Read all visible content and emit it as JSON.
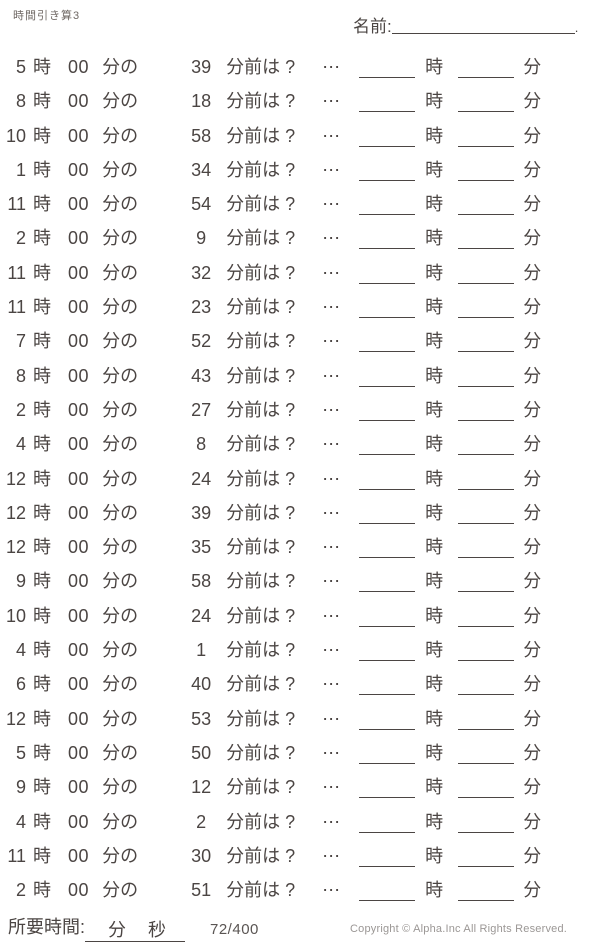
{
  "page": {
    "title": "時間引き算3",
    "name_label": "名前:",
    "name_end_dot": "."
  },
  "problem_labels": {
    "hour_unit": "時",
    "zero_minutes": "00",
    "minutes_of": "分の",
    "before_suffix": "分前は ?",
    "dots": "⋯",
    "answer_hour_unit": "時",
    "answer_minute_unit": "分"
  },
  "problems": [
    {
      "hour": "5",
      "minutes_before": "39"
    },
    {
      "hour": "8",
      "minutes_before": "18"
    },
    {
      "hour": "10",
      "minutes_before": "58"
    },
    {
      "hour": "1",
      "minutes_before": "34"
    },
    {
      "hour": "11",
      "minutes_before": "54"
    },
    {
      "hour": "2",
      "minutes_before": "9"
    },
    {
      "hour": "11",
      "minutes_before": "32"
    },
    {
      "hour": "11",
      "minutes_before": "23"
    },
    {
      "hour": "7",
      "minutes_before": "52"
    },
    {
      "hour": "8",
      "minutes_before": "43"
    },
    {
      "hour": "2",
      "minutes_before": "27"
    },
    {
      "hour": "4",
      "minutes_before": "8"
    },
    {
      "hour": "12",
      "minutes_before": "24"
    },
    {
      "hour": "12",
      "minutes_before": "39"
    },
    {
      "hour": "12",
      "minutes_before": "35"
    },
    {
      "hour": "9",
      "minutes_before": "58"
    },
    {
      "hour": "10",
      "minutes_before": "24"
    },
    {
      "hour": "4",
      "minutes_before": "1"
    },
    {
      "hour": "6",
      "minutes_before": "40"
    },
    {
      "hour": "12",
      "minutes_before": "53"
    },
    {
      "hour": "5",
      "minutes_before": "50"
    },
    {
      "hour": "9",
      "minutes_before": "12"
    },
    {
      "hour": "4",
      "minutes_before": "2"
    },
    {
      "hour": "11",
      "minutes_before": "30"
    },
    {
      "hour": "2",
      "minutes_before": "51"
    }
  ],
  "footer": {
    "elapsed_label": "所要時間:",
    "minute_label": "分",
    "second_label": "秒",
    "progress": "72/400",
    "copyright": "Copyright ©  Alpha.Inc All Rights Reserved."
  },
  "colors": {
    "text": "#4b4543",
    "muted_gray": "#9b9795",
    "progress_gray": "#5a5553"
  }
}
